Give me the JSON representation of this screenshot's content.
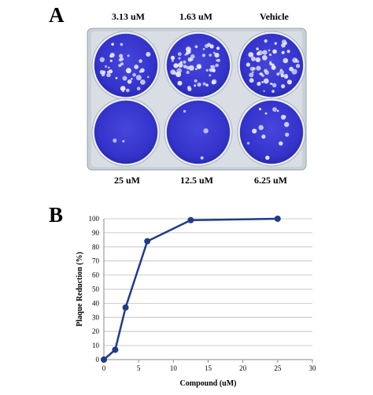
{
  "figure": {
    "panel_a_letter": "A",
    "panel_b_letter": "B",
    "well_labels_top": [
      "3.13 uM",
      "1.63 uM",
      "Vehicle"
    ],
    "well_labels_bottom": [
      "25 uM",
      "12.5 uM",
      "6.25 uM"
    ],
    "colors": {
      "stain": "#3a3ad2",
      "plate_frame": "#c9d0d8",
      "plaque": "#e8eaf5",
      "series": "#1f3c88",
      "grid": "#bdbdbd"
    }
  },
  "chart_data": {
    "type": "line",
    "title": "",
    "xlabel": "Compound (uM)",
    "ylabel": "Plaque Reduction (%)",
    "xlim": [
      0,
      30
    ],
    "ylim": [
      0,
      100
    ],
    "x_ticks": [
      0,
      5,
      10,
      15,
      20,
      25,
      30
    ],
    "y_ticks": [
      0,
      10,
      20,
      30,
      40,
      50,
      60,
      70,
      80,
      90,
      100
    ],
    "grid": "horizontal",
    "legend": "none",
    "series": [
      {
        "x": [
          0,
          1.63,
          3.13,
          6.25,
          12.5,
          25
        ],
        "values": [
          0,
          7,
          37,
          84,
          99,
          100
        ]
      }
    ]
  }
}
